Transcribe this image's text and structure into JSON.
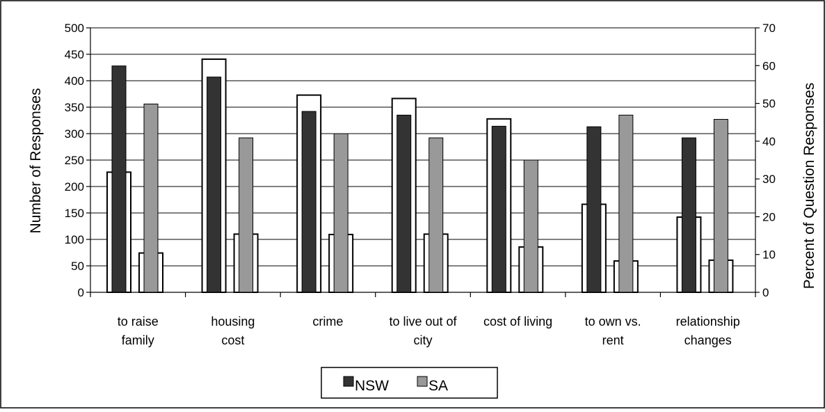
{
  "chart_data": {
    "type": "bar",
    "categories": [
      [
        "to raise",
        "family"
      ],
      [
        "housing",
        "cost"
      ],
      [
        "crime"
      ],
      [
        "to live out of",
        "city"
      ],
      [
        "cost of living"
      ],
      [
        "to own vs.",
        "rent"
      ],
      [
        "relationship",
        "changes"
      ]
    ],
    "series": [
      {
        "name": "NSW",
        "axis": "left",
        "color": "#333333",
        "values": [
          428,
          407,
          342,
          335,
          314,
          313,
          292
        ]
      },
      {
        "name": "SA",
        "axis": "left",
        "color": "#999999",
        "values": [
          356,
          292,
          300,
          292,
          250,
          335,
          327
        ]
      },
      {
        "axis": "right",
        "color": "#ffffff",
        "values": [
          31.8,
          61.7,
          52.2,
          51.3,
          45.9,
          23.3,
          19.9
        ]
      },
      {
        "axis": "right",
        "color": "#ffffff",
        "values": [
          10.4,
          15.4,
          15.3,
          15.4,
          12.0,
          8.3,
          8.5
        ]
      }
    ],
    "ylabel": "Number of Responses",
    "y2label": "Percent of Question Responses",
    "ylim": [
      0,
      500
    ],
    "y2lim": [
      0,
      70
    ],
    "yticks": [
      0,
      50,
      100,
      150,
      200,
      250,
      300,
      350,
      400,
      450,
      500
    ],
    "y2ticks": [
      0,
      10,
      20,
      30,
      40,
      50,
      60,
      70
    ],
    "grid": true,
    "legend": "bottom-center"
  }
}
